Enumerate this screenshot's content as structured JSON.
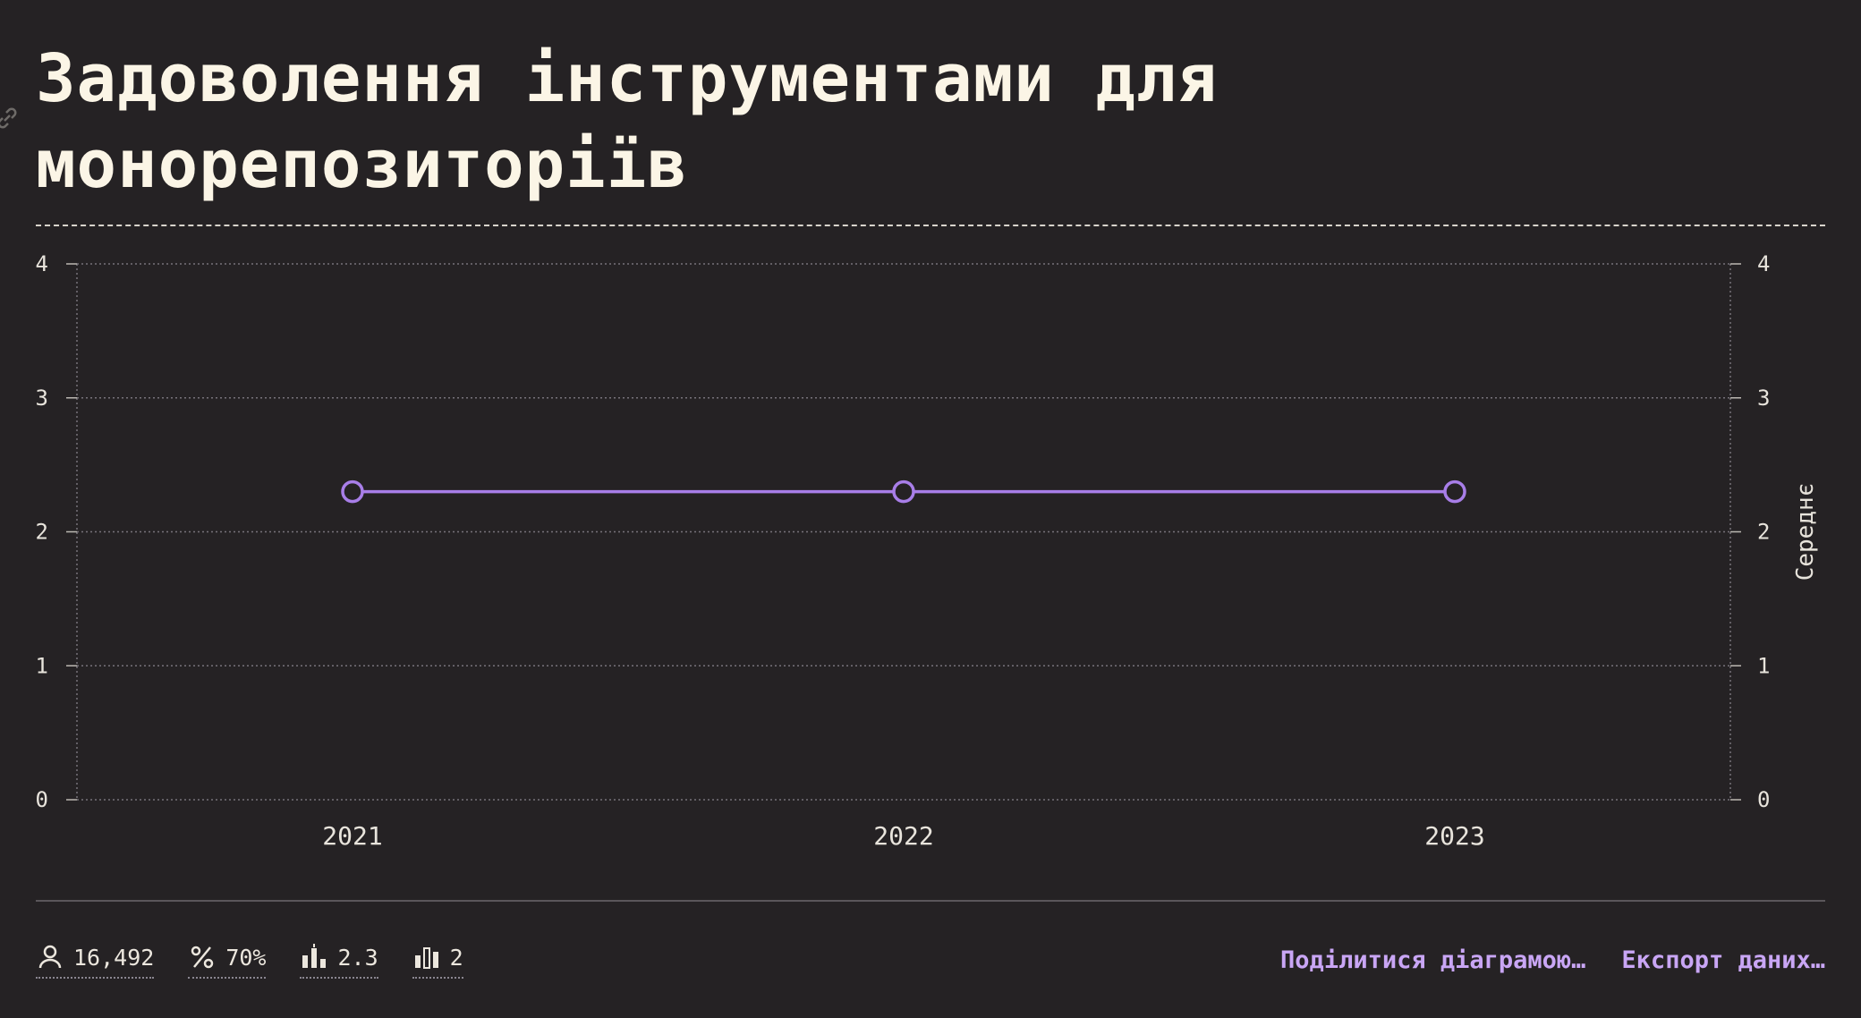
{
  "title": "Задоволення інструментами для монорепозиторіїв",
  "chart_data": {
    "type": "line",
    "x": [
      "2021",
      "2022",
      "2023"
    ],
    "series": [
      {
        "values": [
          2.3,
          2.3,
          2.3
        ]
      }
    ],
    "ylim": [
      0,
      4
    ],
    "yticks": [
      "0",
      "1",
      "2",
      "3",
      "4"
    ],
    "ylabel": "Середнє",
    "grid": true,
    "line_color": "#a87ee8"
  },
  "stats": {
    "respondents": "16,492",
    "percentage": "70%",
    "average": "2.3",
    "count": "2"
  },
  "actions": {
    "share": "Поділитися діаграмою…",
    "export": "Експорт даних…"
  }
}
